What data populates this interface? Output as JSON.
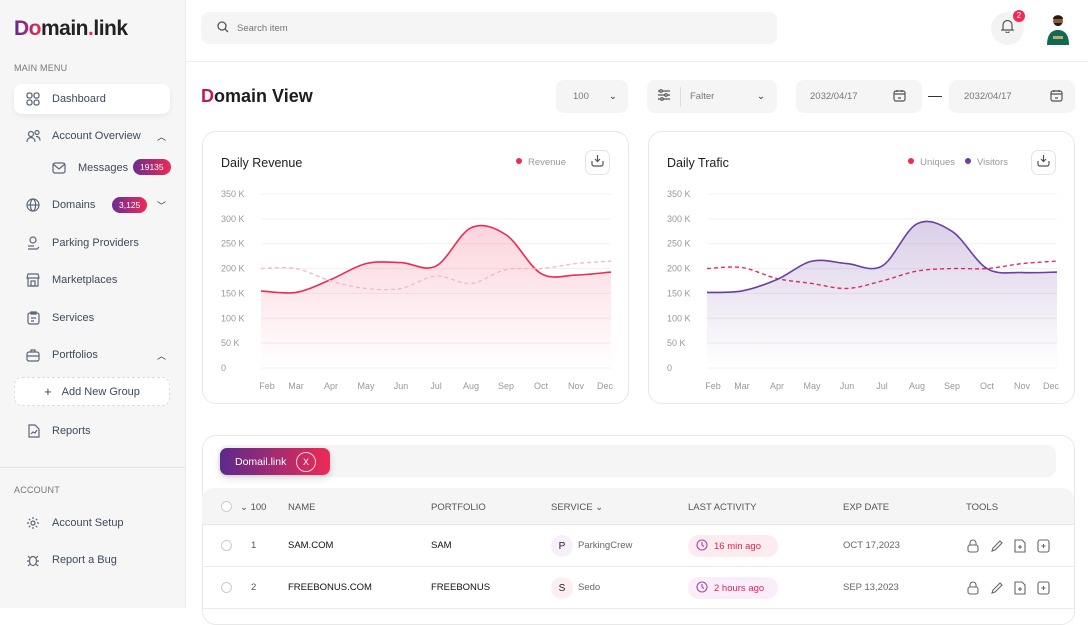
{
  "logo": {
    "text": "Domain.link",
    "part1": "Do",
    "part2": "main",
    "part3": ".",
    "part4": "link"
  },
  "sidebar": {
    "main_menu_label": "MAIN MENU",
    "items": [
      {
        "label": "Dashboard",
        "icon": "grid-icon",
        "active": true
      },
      {
        "label": "Account Overview",
        "icon": "users-icon"
      },
      {
        "label": "Messages",
        "icon": "mail-icon",
        "badge": "19135"
      },
      {
        "label": "Domains",
        "icon": "globe-icon",
        "badge": "3,125"
      },
      {
        "label": "Parking Providers",
        "icon": "user-hand-icon"
      },
      {
        "label": "Marketplaces",
        "icon": "store-icon"
      },
      {
        "label": "Services",
        "icon": "clipboard-icon"
      },
      {
        "label": "Portfolios",
        "icon": "briefcase-icon"
      },
      {
        "label": "Add New Group",
        "icon": "plus-icon"
      },
      {
        "label": "Reports",
        "icon": "report-icon"
      }
    ],
    "account_label": "ACCOUNT",
    "account_items": [
      {
        "label": "Account Setup",
        "icon": "gear-icon"
      },
      {
        "label": "Report a Bug",
        "icon": "bug-icon"
      }
    ]
  },
  "header": {
    "search_placeholder": "Search item",
    "notifications": "2"
  },
  "page": {
    "title_first": "D",
    "title_rest": "omain View",
    "count_select": "100",
    "filter_label": "Falter",
    "date_from": "2032/04/17",
    "date_sep": "—",
    "date_to": "2032/04/17"
  },
  "colors": {
    "accent_red": "#ee2a55",
    "accent_purple": "#6b3fa0"
  },
  "chart_data": [
    {
      "type": "area",
      "title": "Daily Revenue",
      "categories": [
        "Feb",
        "Mar",
        "Apr",
        "May",
        "Jun",
        "Jul",
        "Aug",
        "Sep",
        "Oct",
        "Nov",
        "Dec"
      ],
      "yticks": [
        "0",
        "50 K",
        "100 K",
        "150 K",
        "200 K",
        "250 K",
        "300 K",
        "350 K"
      ],
      "ylim": [
        0,
        350000
      ],
      "legend_placement": "top-right",
      "grid": true,
      "series": [
        {
          "name": "Revenue",
          "style": "solid-filled",
          "color": "#ee2a55",
          "values": [
            155000,
            152000,
            178000,
            210000,
            212000,
            205000,
            282000,
            268000,
            190000,
            187000,
            193000
          ]
        },
        {
          "style": "dashed",
          "color": "#f6b9c6",
          "values": [
            200000,
            200000,
            175000,
            160000,
            160000,
            185000,
            170000,
            198000,
            200000,
            210000,
            215000
          ]
        }
      ]
    },
    {
      "type": "area",
      "title": "Daily Trafic",
      "categories": [
        "Feb",
        "Mar",
        "Apr",
        "May",
        "Jun",
        "Jul",
        "Aug",
        "Sep",
        "Oct",
        "Nov",
        "Dec"
      ],
      "yticks": [
        "0",
        "50 K",
        "100 K",
        "150 K",
        "200 K",
        "250 K",
        "300 K",
        "350 K"
      ],
      "ylim": [
        0,
        350000
      ],
      "legend_placement": "top-right",
      "grid": true,
      "series": [
        {
          "name": "Uniques",
          "style": "dashed",
          "color": "#ee2a55",
          "values": [
            200000,
            202000,
            180000,
            170000,
            160000,
            175000,
            195000,
            200000,
            200000,
            210000,
            215000
          ]
        },
        {
          "name": "Visitors",
          "style": "solid-filled",
          "color": "#6b3fa0",
          "values": [
            152000,
            155000,
            178000,
            215000,
            210000,
            205000,
            290000,
            275000,
            200000,
            192000,
            193000
          ]
        }
      ]
    }
  ],
  "table": {
    "filter_tag": "Domail.link",
    "filter_tag_close": "X",
    "headers": {
      "count": "100",
      "name": "NAME",
      "portfolio": "PORTFOLIO",
      "service": "SERVICE",
      "last_activity": "LAST ACTIVITY",
      "exp_date": "EXP DATE",
      "tools": "TOOLS"
    },
    "rows": [
      {
        "num": "1",
        "name": "SAM.COM",
        "portfolio": "SAM",
        "service_initial": "P",
        "service": "ParkingCrew",
        "last_activity": "16 min ago",
        "exp_date": "OCT 17,2023"
      },
      {
        "num": "2",
        "name": "FREEBONUS.COM",
        "portfolio": "FREEBONUS",
        "service_initial": "S",
        "service": "Sedo",
        "last_activity": "2 hours ago",
        "exp_date": "SEP 13,2023"
      }
    ]
  }
}
